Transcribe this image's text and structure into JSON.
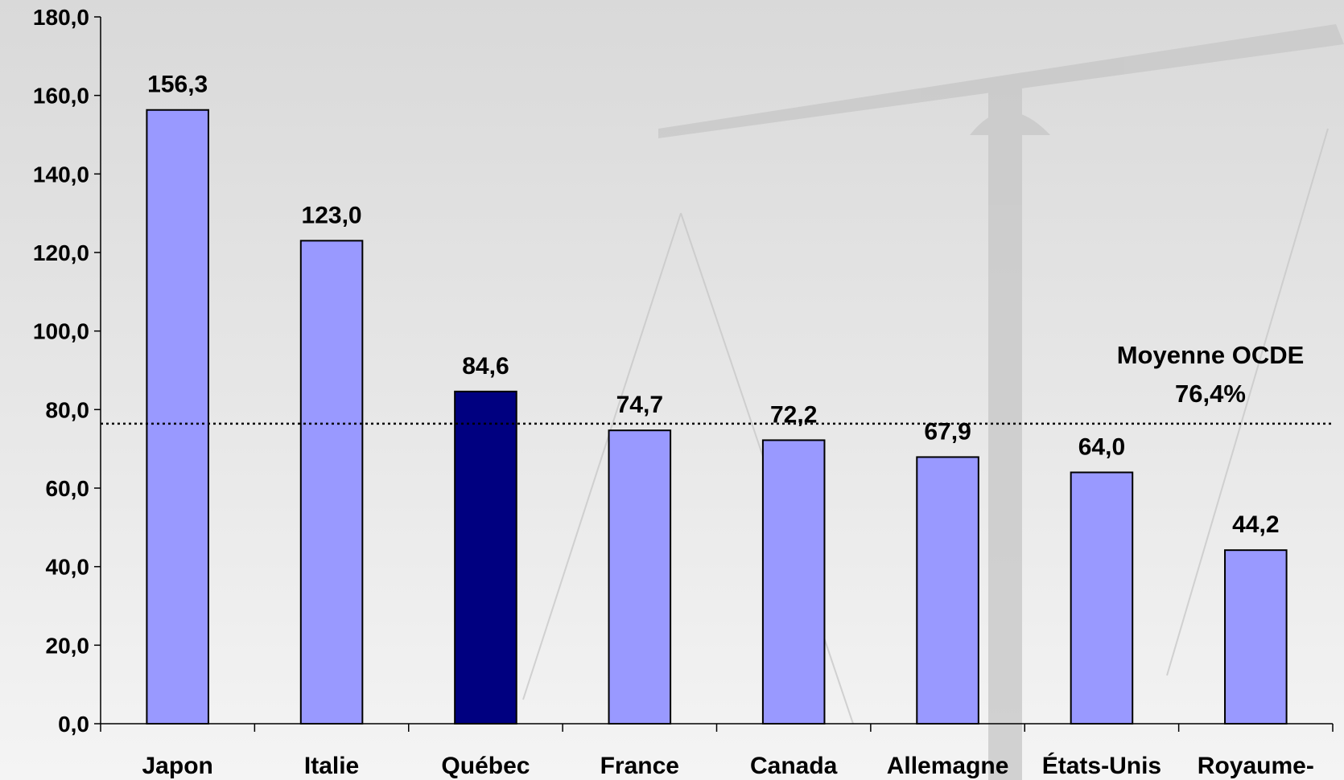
{
  "chart_data": {
    "type": "bar",
    "categories": [
      "Japon",
      "Italie",
      "Québec",
      "France",
      "Canada",
      "Allemagne",
      "États-Unis",
      "Royaume-"
    ],
    "values": [
      156.3,
      123.0,
      84.6,
      74.7,
      72.2,
      67.9,
      64.0,
      44.2
    ],
    "value_labels": [
      "156,3",
      "123,0",
      "84,6",
      "74,7",
      "72,2",
      "67,9",
      "64,0",
      "44,2"
    ],
    "colors": [
      "#9999ff",
      "#9999ff",
      "#000080",
      "#9999ff",
      "#9999ff",
      "#9999ff",
      "#9999ff",
      "#9999ff"
    ],
    "ylim": [
      0,
      180
    ],
    "yticks": [
      {
        "value": 0,
        "label": "0,0"
      },
      {
        "value": 20,
        "label": "20,0"
      },
      {
        "value": 40,
        "label": "40,0"
      },
      {
        "value": 60,
        "label": "60,0"
      },
      {
        "value": 80,
        "label": "80,0"
      },
      {
        "value": 100,
        "label": "100,0"
      },
      {
        "value": 120,
        "label": "120,0"
      },
      {
        "value": 140,
        "label": "140,0"
      },
      {
        "value": 160,
        "label": "160,0"
      },
      {
        "value": 180,
        "label": "180,0"
      }
    ],
    "reference_line": {
      "value": 76.4,
      "label": "Moyenne OCDE",
      "value_label": "76,4%"
    }
  }
}
